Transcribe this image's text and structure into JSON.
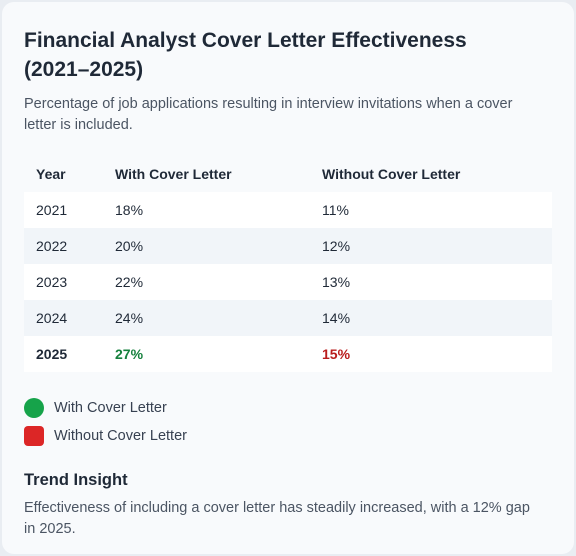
{
  "chart_data": {
    "type": "table",
    "title": "Financial Analyst Cover Letter Effectiveness (2021–2025)",
    "subtitle": "Percentage of job applications resulting in interview invitations when a cover letter is included.",
    "columns": [
      "Year",
      "With Cover Letter",
      "Without Cover Letter"
    ],
    "rows": [
      {
        "year": "2021",
        "with": "18%",
        "without": "11%"
      },
      {
        "year": "2022",
        "with": "20%",
        "without": "12%"
      },
      {
        "year": "2023",
        "with": "22%",
        "without": "13%"
      },
      {
        "year": "2024",
        "with": "24%",
        "without": "14%"
      },
      {
        "year": "2025",
        "with": "27%",
        "without": "15%"
      }
    ],
    "categories": [
      "2021",
      "2022",
      "2023",
      "2024",
      "2025"
    ],
    "series": [
      {
        "name": "With Cover Letter",
        "values": [
          18,
          20,
          22,
          24,
          27
        ],
        "color": "#16a34a"
      },
      {
        "name": "Without Cover Letter",
        "values": [
          11,
          12,
          13,
          14,
          15
        ],
        "color": "#dc2626"
      }
    ],
    "legend": [
      {
        "label": "With Cover Letter",
        "color": "#16a34a",
        "shape": "circle"
      },
      {
        "label": "Without Cover Letter",
        "color": "#dc2626",
        "shape": "square"
      }
    ]
  },
  "insight": {
    "title": "Trend Insight",
    "text": "Effectiveness of including a cover letter has steadily increased, with a 12% gap in 2025."
  },
  "colors": {
    "positive_text": "#15803d",
    "negative_text": "#b91c1c"
  }
}
